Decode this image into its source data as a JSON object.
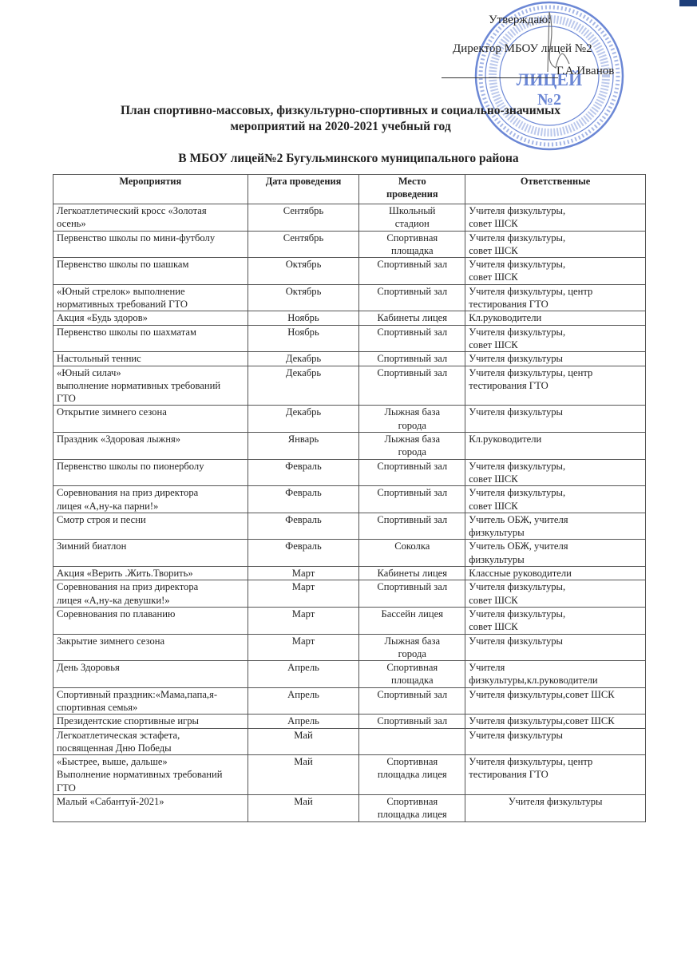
{
  "approval": {
    "approve_label": "Утверждаю:",
    "director_title": "Директор МБОУ лицей №2",
    "director_name": "Г.А.Иванов",
    "stamp_text": "ЛИЦЕЙ №2"
  },
  "title": {
    "line1": "План спортивно-массовых, физкультурно-спортивных и социально-значимых",
    "line2": "мероприятий на 2020-2021 учебный год",
    "subtitle": "В МБОУ лицей№2 Бугульминского муниципального района"
  },
  "stamp_color": "#3a5fc8",
  "table": {
    "headers": [
      "Мероприятия",
      "Дата проведения",
      "Место\nпроведения",
      "Ответственные"
    ],
    "rows": [
      [
        "Легкоатлетический кросс «Золотая\nосень»",
        "Сентябрь",
        "Школьный\nстадион",
        "Учителя физкультуры,\nсовет ШСК"
      ],
      [
        "Первенство школы по мини-футболу",
        "Сентябрь",
        "Спортивная\nплощадка",
        "Учителя физкультуры,\nсовет ШСК"
      ],
      [
        "Первенство школы по шашкам",
        "Октябрь",
        "Спортивный зал",
        "Учителя физкультуры,\nсовет ШСК"
      ],
      [
        "«Юный стрелок»  выполнение\nнормативных требований ГТО",
        "Октябрь",
        "Спортивный зал",
        "Учителя физкультуры, центр\nтестирования  ГТО"
      ],
      [
        "Акция «Будь здоров»",
        "Ноябрь",
        "Кабинеты лицея",
        "Кл.руководители"
      ],
      [
        "Первенство школы по шахматам",
        "Ноябрь",
        "Спортивный зал",
        "Учителя физкультуры,\nсовет ШСК"
      ],
      [
        "Настольный теннис",
        "Декабрь",
        "Спортивный зал",
        "Учителя физкультуры"
      ],
      [
        "«Юный силач»\nвыполнение нормативных требований\nГТО",
        "Декабрь",
        "Спортивный зал",
        "Учителя физкультуры, центр\nтестирования  ГТО"
      ],
      [
        "Открытие зимнего сезона",
        "Декабрь",
        "Лыжная база\nгорода",
        "Учителя физкультуры"
      ],
      [
        "Праздник «Здоровая лыжня»",
        "Январь",
        "Лыжная база\nгорода",
        "Кл.руководители"
      ],
      [
        "Первенство школы по пионерболу",
        "Февраль",
        "Спортивный зал",
        "Учителя физкультуры,\nсовет ШСК"
      ],
      [
        "Соревнования на приз директора\nлицея «А,ну-ка  парни!»",
        "Февраль",
        "Спортивный зал",
        "Учителя физкультуры,\nсовет ШСК"
      ],
      [
        "Смотр строя и песни",
        "Февраль",
        "Спортивный зал",
        "Учитель ОБЖ, учителя\nфизкультуры"
      ],
      [
        "Зимний биатлон",
        "Февраль",
        "Соколка",
        "Учитель ОБЖ, учителя\nфизкультуры"
      ],
      [
        "Акция «Верить .Жить.Творить»",
        "Март",
        "Кабинеты лицея",
        "Классные руководители"
      ],
      [
        "Соревнования на приз директора\nлицея «А,ну-ка  девушки!»",
        "Март",
        "Спортивный зал",
        "Учителя физкультуры,\nсовет ШСК"
      ],
      [
        "Соревнования по плаванию",
        "Март",
        "Бассейн лицея",
        "Учителя физкультуры,\nсовет ШСК"
      ],
      [
        "Закрытие зимнего сезона",
        "Март",
        "Лыжная база\nгорода",
        "Учителя физкультуры"
      ],
      [
        "День Здоровья",
        "Апрель",
        "Спортивная\nплощадка",
        "Учителя\nфизкультуры,кл.руководители"
      ],
      [
        "Спортивный праздник:«Мама,папа,я-\nспортивная семья»",
        "Апрель",
        "Спортивный зал",
        "Учителя физкультуры,совет ШСК"
      ],
      [
        "Президентские спортивные игры",
        "Апрель",
        "Спортивный зал",
        "Учителя физкультуры,совет ШСК"
      ],
      [
        "Легкоатлетическая эстафета,\nпосвященная  Дню Победы",
        "Май",
        "",
        "Учителя физкультуры"
      ],
      [
        "«Быстрее, выше, дальше»\nВыполнение нормативных требований\nГТО",
        "Май",
        "Спортивная\nплощадка лицея",
        "Учителя физкультуры, центр\nтестирования ГТО"
      ],
      [
        "Малый «Сабантуй-2021»",
        "Май",
        "Спортивная\nплощадка лицея",
        "Учителя физкультуры"
      ]
    ]
  }
}
